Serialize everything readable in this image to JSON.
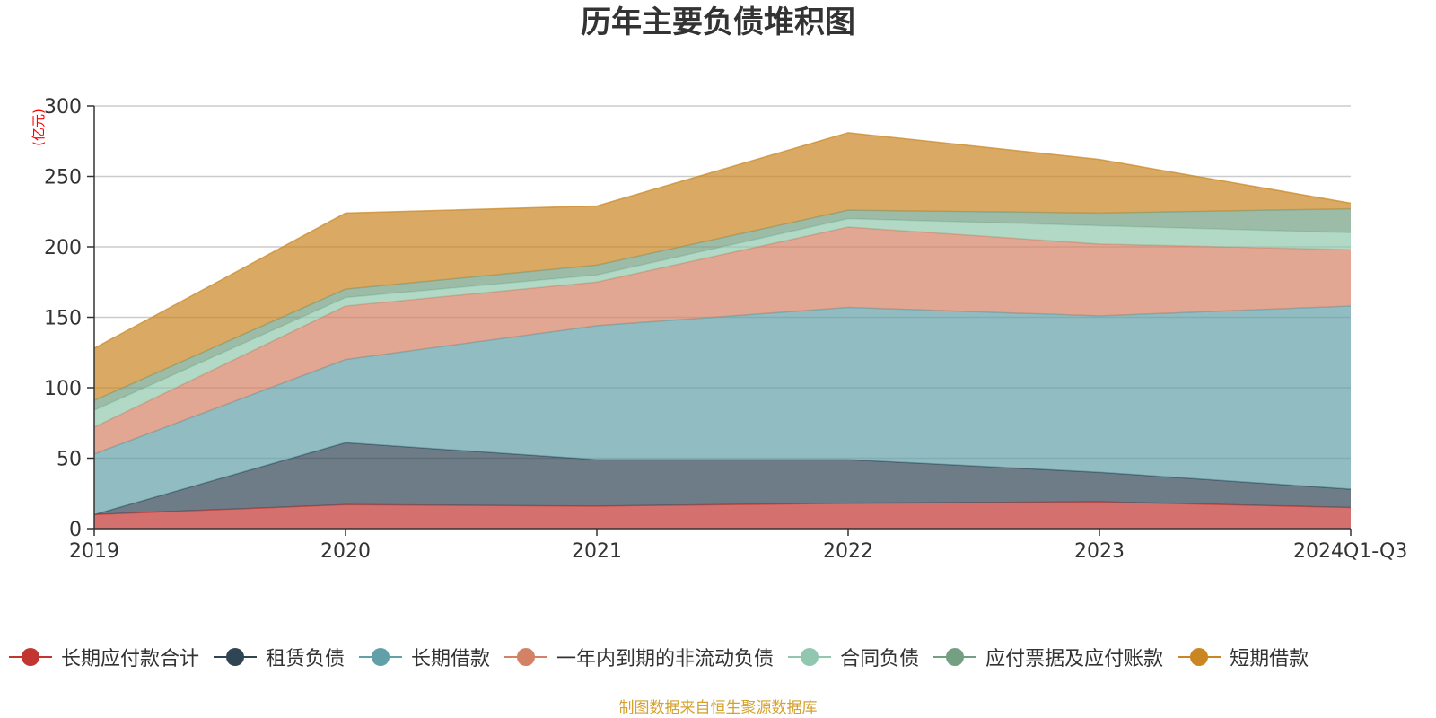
{
  "chart_data": {
    "type": "area",
    "stacked": true,
    "title": "历年主要负债堆积图",
    "ylabel": "(亿元)",
    "xlabel": "",
    "categories": [
      "2019",
      "2020",
      "2021",
      "2022",
      "2023",
      "2024Q1-Q3"
    ],
    "ylim": [
      0,
      300
    ],
    "yticks": [
      0,
      50,
      100,
      150,
      200,
      250,
      300
    ],
    "grid": true,
    "legend_position": "bottom",
    "series": [
      {
        "name": "长期应付款合计",
        "color": "#c23531",
        "values": [
          10,
          17,
          16,
          18,
          19,
          15
        ]
      },
      {
        "name": "租赁负债",
        "color": "#2f4554",
        "values": [
          0,
          44,
          33,
          31,
          21,
          13
        ]
      },
      {
        "name": "长期借款",
        "color": "#61a0a8",
        "values": [
          43,
          59,
          95,
          108,
          111,
          130
        ]
      },
      {
        "name": "一年内到期的非流动负债",
        "color": "#d48265",
        "values": [
          19,
          38,
          31,
          57,
          51,
          40
        ]
      },
      {
        "name": "合同负债",
        "color": "#91c7ae",
        "values": [
          12,
          6,
          5,
          6,
          13,
          12
        ]
      },
      {
        "name": "应付票据及应付账款",
        "color": "#749f83",
        "values": [
          7,
          6,
          7,
          6,
          9,
          17
        ]
      },
      {
        "name": "短期借款",
        "color": "#ca8622",
        "values": [
          37,
          54,
          42,
          55,
          38,
          4
        ]
      }
    ]
  },
  "source_note": "制图数据来自恒生聚源数据库"
}
